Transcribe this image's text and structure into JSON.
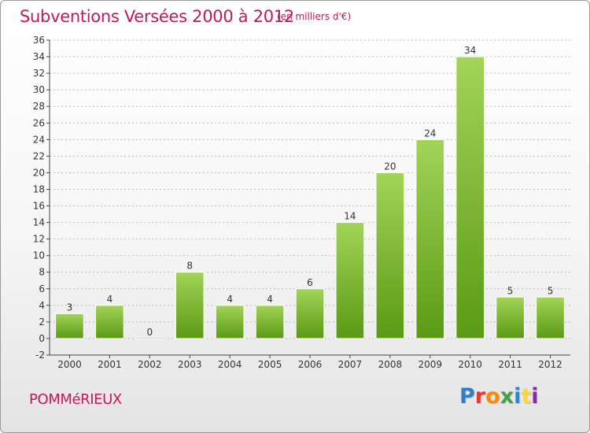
{
  "header": {
    "title": "Subventions Versées 2000 à 2012",
    "unit": "(en milliers d'€)"
  },
  "footer": {
    "commune": "POMMéRIEUX",
    "logo": "Proxiti",
    "logo_colors": [
      "#2e7fc8",
      "#e53935",
      "#fb8c00",
      "#43a047",
      "#1e88e5",
      "#fdd835",
      "#8e24aa"
    ]
  },
  "colors": {
    "bar_top": "#a2d458",
    "bar_bottom": "#5a9a14",
    "grid": "#bbbbbb",
    "axis": "#444444"
  },
  "chart_data": {
    "type": "bar",
    "title": "Subventions Versées 2000 à 2012",
    "subtitle": "(en milliers d'€)",
    "xlabel": "",
    "ylabel": "",
    "categories": [
      "2000",
      "2001",
      "2002",
      "2003",
      "2004",
      "2005",
      "2006",
      "2007",
      "2008",
      "2009",
      "2010",
      "2011",
      "2012"
    ],
    "values": [
      3,
      4,
      0,
      8,
      4,
      4,
      6,
      14,
      20,
      24,
      34,
      5,
      5
    ],
    "data_labels": [
      "3",
      "4",
      "0",
      "8",
      "4",
      "4",
      "6",
      "14",
      "20",
      "24",
      "34",
      "5",
      "5"
    ],
    "ylim": [
      -2,
      36
    ],
    "yticks": [
      -2,
      0,
      2,
      4,
      6,
      8,
      10,
      12,
      14,
      16,
      18,
      20,
      22,
      24,
      26,
      28,
      30,
      32,
      34,
      36
    ],
    "ytick_labels": [
      "-2",
      "0",
      "2",
      "4",
      "6",
      "8",
      "10",
      "12",
      "14",
      "16",
      "18",
      "20",
      "22",
      "24",
      "26",
      "28",
      "30",
      "32",
      "34",
      "36"
    ],
    "grid": true,
    "grid_axis": "y",
    "legend": "none"
  }
}
